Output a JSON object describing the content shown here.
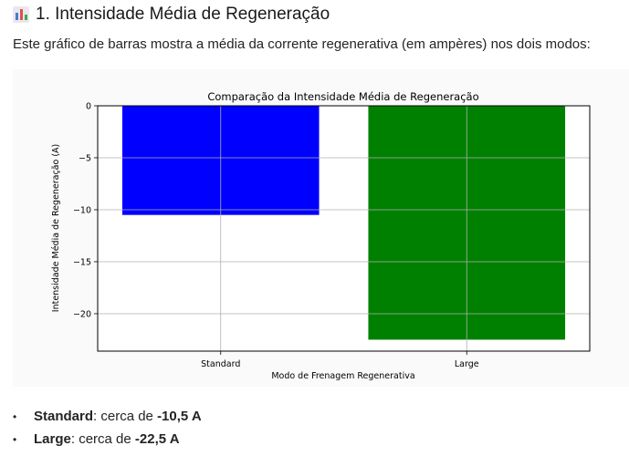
{
  "section": {
    "icon": "bar-chart-emoji-icon",
    "title": "1. Intensidade Média de Regeneração",
    "intro": "Este gráfico de barras mostra a média da corrente regenerativa (em ampères) nos dois modos:"
  },
  "chart_data": {
    "type": "bar",
    "title": "Comparação da Intensidade Média de Regeneração",
    "xlabel": "Modo de Frenagem Regenerativa",
    "ylabel": "Intensidade Média de Regeneração (A)",
    "categories": [
      "Standard",
      "Large"
    ],
    "values": [
      -10.5,
      -22.5
    ],
    "colors": [
      "#0000ff",
      "#008000"
    ],
    "ylim": [
      -23.6,
      0
    ],
    "yticks": [
      0,
      -5,
      -10,
      -15,
      -20
    ],
    "ytick_labels": [
      "0",
      "−5",
      "−10",
      "−15",
      "−20"
    ],
    "grid": true
  },
  "bullets": [
    {
      "label": "Standard",
      "text_prefix": ": cerca de ",
      "value": "-10,5 A"
    },
    {
      "label": "Large",
      "text_prefix": ": cerca de ",
      "value": "-22,5 A"
    }
  ]
}
